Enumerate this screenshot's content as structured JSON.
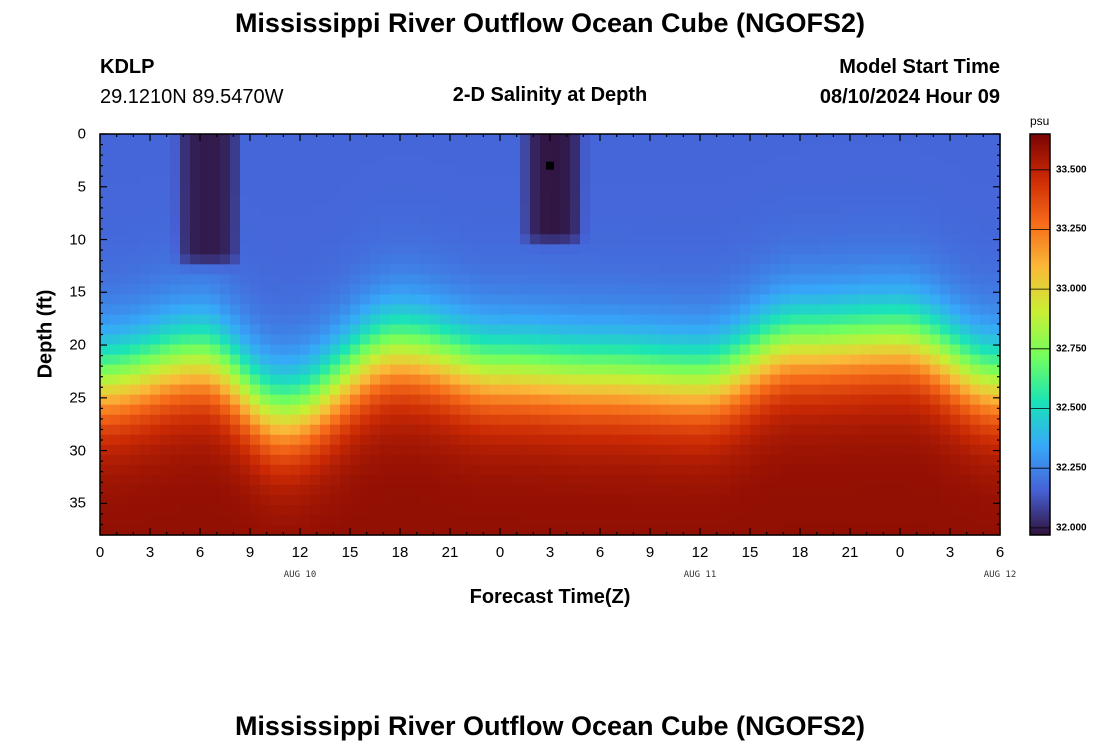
{
  "page": {
    "title": "Mississippi River Outflow Ocean Cube (NGOFS2)",
    "footer_title": "Mississippi River Outflow Ocean Cube (NGOFS2)"
  },
  "header": {
    "station": "KDLP",
    "coords": "29.1210N  89.5470W",
    "product": "2-D Salinity at Depth",
    "start_label": "Model Start Time",
    "start_value": "08/10/2024 Hour 09"
  },
  "chart_data": {
    "type": "heatmap",
    "title": "2-D Salinity at Depth",
    "xlabel": "Forecast Time(Z)",
    "ylabel": "Depth (ft)",
    "x_hours_range": [
      0,
      54
    ],
    "x_tick_labels": [
      "0",
      "3",
      "6",
      "9",
      "12",
      "15",
      "18",
      "21",
      "0",
      "3",
      "6",
      "9",
      "12",
      "15",
      "18",
      "21",
      "0",
      "3",
      "6"
    ],
    "date_labels": [
      "AUG 10",
      "AUG 11",
      "AUG 12"
    ],
    "y_range_ft": [
      0,
      38
    ],
    "y_tick_labels": [
      "0",
      "5",
      "10",
      "15",
      "20",
      "25",
      "30",
      "35"
    ],
    "y_reversed": true,
    "colorbar": {
      "unit": "psu",
      "range": [
        31.97,
        33.65
      ],
      "tick_labels": [
        "33.500",
        "33.250",
        "33.000",
        "32.750",
        "32.500",
        "32.250",
        "32.000"
      ],
      "colors": [
        "#30123b",
        "#4661d6",
        "#36a8f9",
        "#1ae4b6",
        "#72fe5e",
        "#c8ef34",
        "#faba39",
        "#f66b19",
        "#cb2a04",
        "#7a0403"
      ]
    },
    "fields": {
      "surface_salinity": 32.17,
      "bottom_salinity": 33.6,
      "thermocline_depth_ft": [
        {
          "hour": 0,
          "depth": 23.5
        },
        {
          "hour": 6,
          "depth": 21.5
        },
        {
          "hour": 11,
          "depth": 26.5
        },
        {
          "hour": 18,
          "depth": 20.5
        },
        {
          "hour": 24,
          "depth": 22.5
        },
        {
          "hour": 30,
          "depth": 23.0
        },
        {
          "hour": 36,
          "depth": 23.5
        },
        {
          "hour": 42,
          "depth": 20.0
        },
        {
          "hour": 48,
          "depth": 19.5
        },
        {
          "hour": 54,
          "depth": 23.5
        }
      ],
      "fresh_pockets": [
        {
          "hour_from": 5.2,
          "hour_to": 7.8,
          "depth_from": 0,
          "depth_to": 11.5,
          "salinity": 31.99
        },
        {
          "hour_from": 26.0,
          "hour_to": 28.4,
          "depth_from": 0,
          "depth_to": 9.5,
          "salinity": 31.98
        }
      ]
    }
  }
}
